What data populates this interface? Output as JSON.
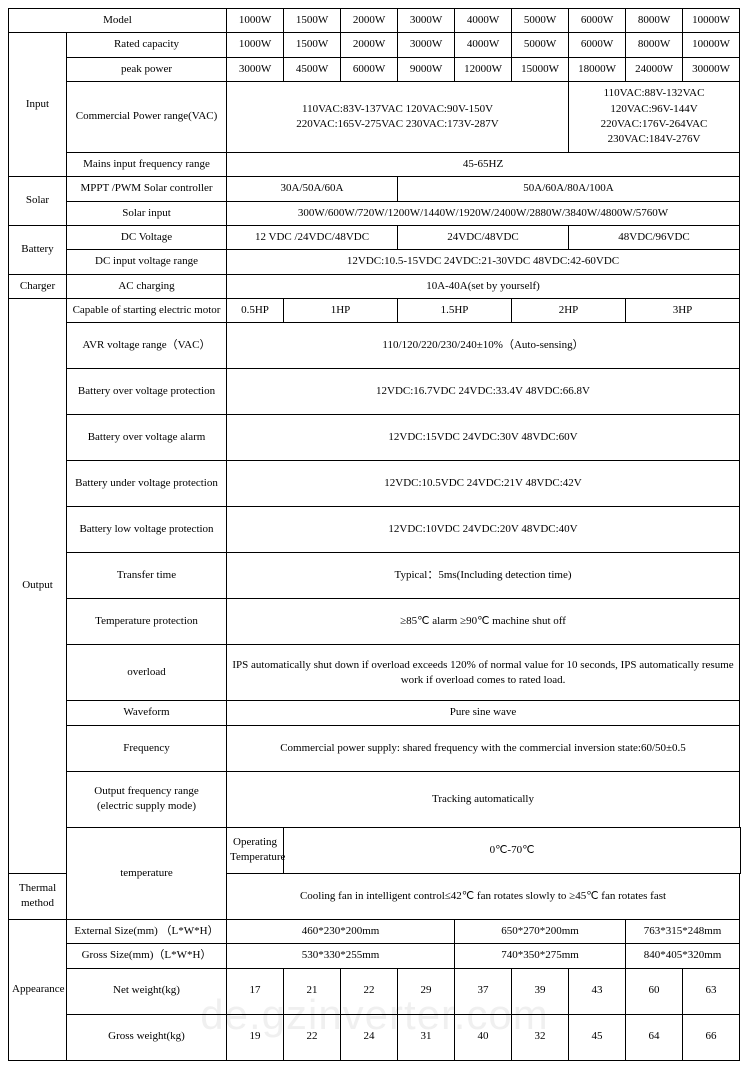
{
  "header": {
    "model_label": "Model",
    "models": [
      "1000W",
      "1500W",
      "2000W",
      "3000W",
      "4000W",
      "5000W",
      "6000W",
      "8000W",
      "10000W"
    ]
  },
  "input": {
    "section": "Input",
    "rated_capacity_label": "Rated capacity",
    "rated_capacity": [
      "1000W",
      "1500W",
      "2000W",
      "3000W",
      "4000W",
      "5000W",
      "6000W",
      "8000W",
      "10000W"
    ],
    "peak_power_label": "peak power",
    "peak_power": [
      "3000W",
      "4500W",
      "6000W",
      "9000W",
      "12000W",
      "15000W",
      "18000W",
      "24000W",
      "30000W"
    ],
    "commercial_range_label": "Commercial Power range(VAC)",
    "commercial_range_left": "110VAC:83V-137VAC  120VAC:90V-150V\n220VAC:165V-275VAC  230VAC:173V-287V",
    "commercial_range_right": "110VAC:88V-132VAC\n120VAC:96V-144V\n220VAC:176V-264VAC\n230VAC:184V-276V",
    "mains_freq_label": "Mains input frequency range",
    "mains_freq": "45-65HZ"
  },
  "solar": {
    "section": "Solar",
    "controller_label": "MPPT /PWM    Solar controller",
    "controller_a": "30A/50A/60A",
    "controller_b": "50A/60A/80A/100A",
    "solar_input_label": "Solar input",
    "solar_input": "300W/600W/720W/1200W/1440W/1920W/2400W/2880W/3840W/4800W/5760W"
  },
  "battery": {
    "section": "Battery",
    "dc_voltage_label": "DC Voltage",
    "dc_voltage_a": "12 VDC /24VDC/48VDC",
    "dc_voltage_b": "24VDC/48VDC",
    "dc_voltage_c": "48VDC/96VDC",
    "dc_input_range_label": "DC input voltage range",
    "dc_input_range": "12VDC:10.5-15VDC      24VDC:21-30VDC      48VDC:42-60VDC"
  },
  "charger": {
    "section": "Charger",
    "ac_charging_label": "AC charging",
    "ac_charging": "10A-40A(set by yourself)"
  },
  "output": {
    "section": "Output",
    "motor_label": "Capable of starting electric motor",
    "motor": [
      "0.5HP",
      "1HP",
      "1.5HP",
      "2HP",
      "3HP"
    ],
    "avr_label": "AVR voltage range（VAC）",
    "avr": "110/120/220/230/240±10%（Auto-sensing）",
    "bov_prot_label": "Battery over voltage protection",
    "bov_prot": "12VDC:16.7VDC      24VDC:33.4V      48VDC:66.8V",
    "bov_alarm_label": "Battery over voltage alarm",
    "bov_alarm": "12VDC:15VDC       24VDC:30V       48VDC:60V",
    "buv_prot_label": "Battery under voltage protection",
    "buv_prot": "12VDC:10.5VDC      24VDC:21V        48VDC:42V",
    "blv_prot_label": "Battery low voltage protection",
    "blv_prot": "12VDC:10VDC      24VDC:20V       48VDC:40V",
    "transfer_label": "Transfer time",
    "transfer": "Typical：5ms(Including detection time)",
    "temp_prot_label": "Temperature protection",
    "temp_prot": "≥85℃ alarm ≥90℃ machine shut off",
    "overload_label": "overload",
    "overload": "IPS automatically shut down if overload exceeds 120% of normal value for 10 seconds, IPS automatically resume work if overload comes to rated load.",
    "waveform_label": "Waveform",
    "waveform": "Pure sine wave",
    "frequency_label": "Frequency",
    "frequency": "Commercial power supply: shared frequency with the commercial inversion state:60/50±0.5",
    "out_freq_range_label": "Output frequency range\n(electric supply mode)",
    "out_freq_range": "Tracking automatically"
  },
  "temperature": {
    "section": "temperature",
    "op_temp_label": "Operating Temperature",
    "op_temp": "0℃-70℃",
    "thermal_label": "Thermal method",
    "thermal": "Cooling fan in intelligent control≤42℃ fan rotates slowly to ≥45℃ fan rotates fast"
  },
  "appearance": {
    "section": "Appearance",
    "ext_size_label": "External Size(mm) （L*W*H）",
    "ext_size": [
      "460*230*200mm",
      "650*270*200mm",
      "763*315*248mm"
    ],
    "gross_size_label": "Gross Size(mm)（L*W*H）",
    "gross_size": [
      "530*330*255mm",
      "740*350*275mm",
      "840*405*320mm"
    ],
    "net_weight_label": "Net weight(kg)",
    "net_weight": [
      "17",
      "21",
      "22",
      "29",
      "37",
      "39",
      "43",
      "60",
      "63"
    ],
    "gross_weight_label": "Gross weight(kg)",
    "gross_weight": [
      "19",
      "22",
      "24",
      "31",
      "40",
      "32",
      "45",
      "64",
      "66"
    ]
  },
  "watermark": "de.gzinverter.com"
}
